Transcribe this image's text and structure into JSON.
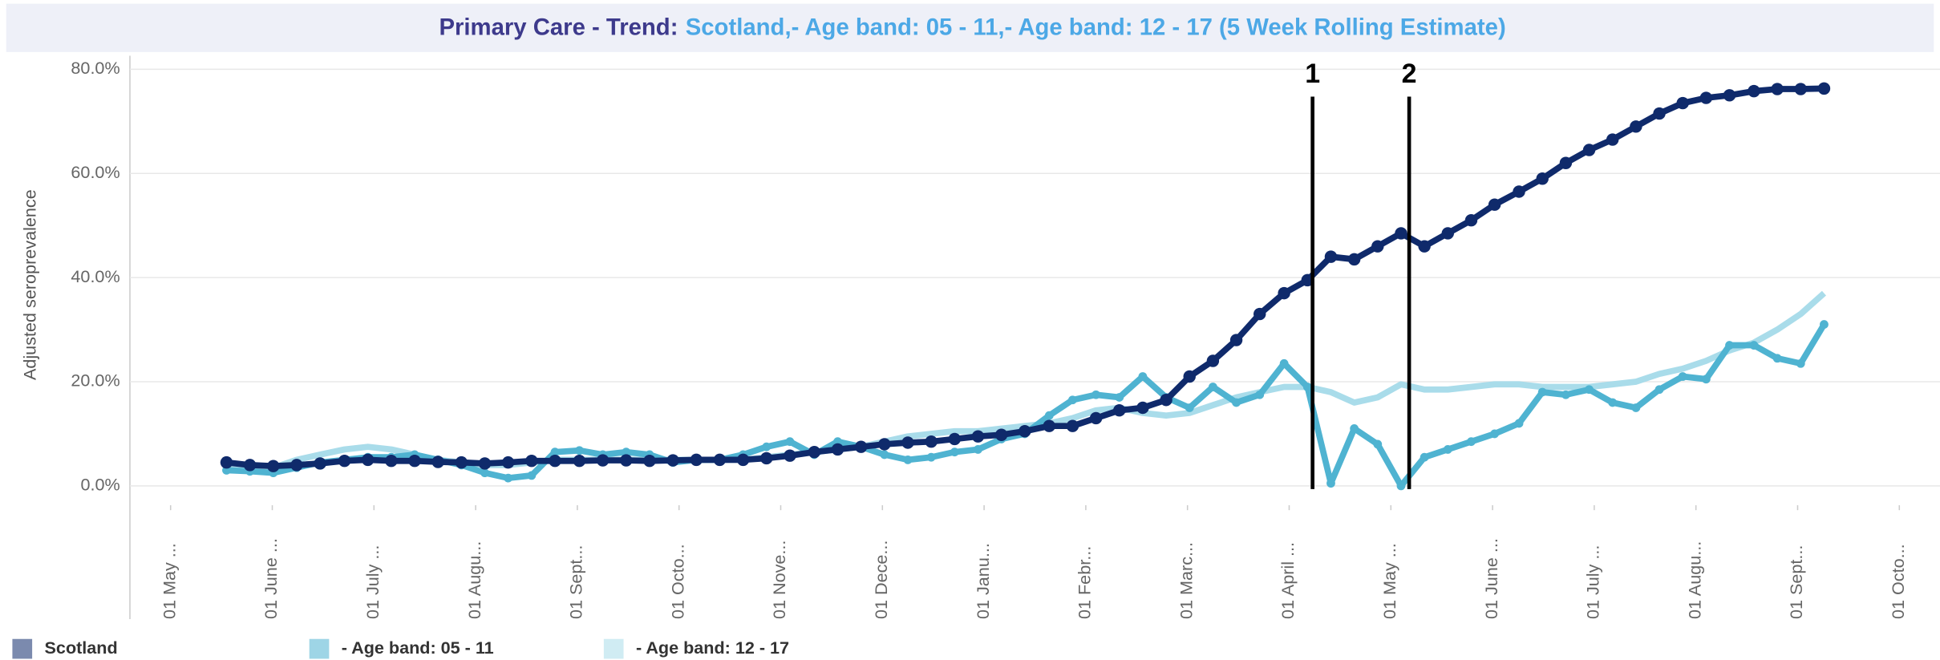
{
  "chart_data": {
    "type": "line",
    "title": "Primary Care - Trend:",
    "subtitle": "Scotland,- Age band: 05 - 11,- Age band: 12 - 17 (5 Week Rolling Estimate)",
    "y_label": "Adjusted seroprevalence",
    "x": [
      0.55,
      0.78,
      1.01,
      1.24,
      1.47,
      1.71,
      1.94,
      2.17,
      2.4,
      2.63,
      2.86,
      3.09,
      3.32,
      3.55,
      3.78,
      4.02,
      4.25,
      4.48,
      4.71,
      4.94,
      5.17,
      5.4,
      5.63,
      5.86,
      6.09,
      6.33,
      6.56,
      6.79,
      7.02,
      7.25,
      7.48,
      7.71,
      7.94,
      8.17,
      8.4,
      8.64,
      8.87,
      9.1,
      9.33,
      9.56,
      9.79,
      10.02,
      10.25,
      10.48,
      10.71,
      10.95,
      11.18,
      11.41,
      11.64,
      11.87,
      12.1,
      12.33,
      12.56,
      12.79,
      13.02,
      13.26,
      13.49,
      13.72,
      13.95,
      14.18,
      14.41,
      14.64,
      14.87,
      15.1,
      15.33,
      15.57,
      15.8,
      16.03,
      16.26
    ],
    "series": [
      {
        "name": "Scotland",
        "color": "#0f2a6b",
        "values": [
          4.5,
          4,
          3.8,
          4,
          4.3,
          4.8,
          5,
          4.8,
          4.8,
          4.6,
          4.5,
          4.3,
          4.5,
          4.8,
          4.8,
          4.8,
          4.9,
          4.9,
          4.8,
          4.9,
          5,
          5,
          5,
          5.3,
          5.8,
          6.5,
          7,
          7.5,
          8,
          8.3,
          8.5,
          9,
          9.5,
          9.8,
          10.5,
          11.5,
          11.5,
          13,
          14.5,
          15,
          16.5,
          21,
          24,
          28,
          33,
          37,
          39.5,
          44,
          43.5,
          46,
          48.5,
          46,
          48.5,
          51,
          54,
          56.5,
          59,
          62,
          64.5,
          66.5,
          69,
          71.5,
          73.5,
          74.5,
          75,
          75.8,
          76.2,
          76.2,
          76.3
        ]
      },
      {
        "name": "- Age band: 05 - 11",
        "color": "#4fb3d1",
        "values": [
          3,
          2.8,
          2.5,
          3.5,
          4.5,
          5,
          5.5,
          5.5,
          6,
          5,
          4,
          2.5,
          1.5,
          2,
          6.5,
          6.8,
          6,
          6.5,
          6,
          4.5,
          5,
          5,
          6,
          7.5,
          8.5,
          6,
          8.5,
          7.5,
          6,
          5,
          5.5,
          6.5,
          7,
          9,
          10,
          13.5,
          16.5,
          17.5,
          17,
          21,
          17,
          15,
          19,
          16,
          17.5,
          23.5,
          19,
          0.5,
          11,
          8,
          0,
          5.5,
          7,
          8.5,
          10,
          12,
          18,
          17.5,
          18.5,
          16,
          15,
          18.5,
          21,
          20.5,
          27,
          27,
          24.5,
          23.5,
          31
        ]
      },
      {
        "name": "- Age band: 12 - 17",
        "color": "#a9dcea",
        "values": [
          3.5,
          3.5,
          3.5,
          5,
          6,
          7,
          7.5,
          7,
          6,
          5,
          4.5,
          4,
          4,
          4.5,
          5,
          5,
          5,
          5,
          5,
          5,
          5,
          5,
          5,
          5.5,
          6,
          6.5,
          7,
          7.5,
          8.5,
          9.5,
          10,
          10.5,
          10.5,
          11,
          11.5,
          12,
          13,
          14.5,
          15,
          14,
          13.5,
          14,
          15.5,
          17,
          18,
          19,
          19,
          18,
          16,
          17,
          19.5,
          18.5,
          18.5,
          19,
          19.5,
          19.5,
          19,
          19,
          19,
          19.5,
          20,
          21.5,
          22.5,
          24,
          26,
          27.5,
          30,
          33,
          37
        ]
      }
    ],
    "xlim": [
      -0.4,
      17.4
    ],
    "xticks": [
      {
        "value": 0,
        "label": "01 May ..."
      },
      {
        "value": 1,
        "label": "01 June ..."
      },
      {
        "value": 2,
        "label": "01 July ..."
      },
      {
        "value": 3,
        "label": "01 Augu..."
      },
      {
        "value": 4,
        "label": "01 Sept..."
      },
      {
        "value": 5,
        "label": "01 Octo..."
      },
      {
        "value": 6,
        "label": "01 Nove..."
      },
      {
        "value": 7,
        "label": "01 Dece..."
      },
      {
        "value": 8,
        "label": "01 Janu..."
      },
      {
        "value": 9,
        "label": "01 Febr..."
      },
      {
        "value": 10,
        "label": "01 Marc..."
      },
      {
        "value": 11,
        "label": "01 April ..."
      },
      {
        "value": 12,
        "label": "01 May ..."
      },
      {
        "value": 13,
        "label": "01 June ..."
      },
      {
        "value": 14,
        "label": "01 July ..."
      },
      {
        "value": 15,
        "label": "01 Augu..."
      },
      {
        "value": 16,
        "label": "01 Sept..."
      },
      {
        "value": 17,
        "label": "01 Octo..."
      }
    ],
    "ylim": [
      -3,
      82.6
    ],
    "yticks": [
      {
        "value": 0,
        "label": "0.0%"
      },
      {
        "value": 20,
        "label": "20.0%"
      },
      {
        "value": 40,
        "label": "40.0%"
      },
      {
        "value": 60,
        "label": "60.0%"
      },
      {
        "value": 80,
        "label": "80.0%"
      }
    ],
    "grid": true,
    "legend": "bottom-left",
    "annotations": [
      {
        "label": "1",
        "x": 11.23
      },
      {
        "label": "2",
        "x": 12.18
      }
    ]
  }
}
